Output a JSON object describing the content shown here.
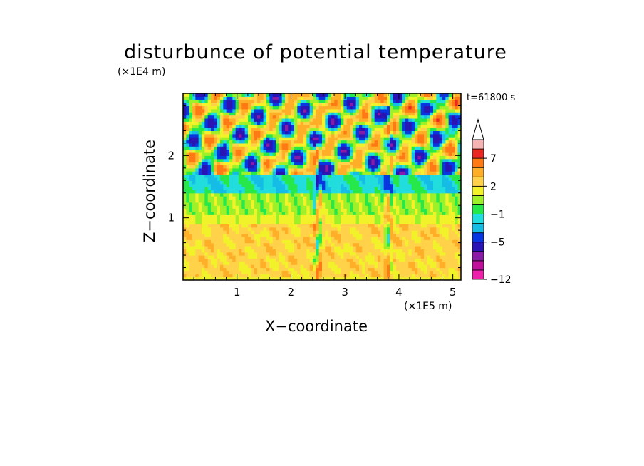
{
  "chart_data": {
    "type": "heatmap",
    "title": "disturbunce of potential temperature",
    "xlabel": "X−coordinate",
    "ylabel": "Z−coordinate",
    "x_unit": "(×1E5 m)",
    "y_unit": "(×1E4 m)",
    "timestamp": "t=61800 s",
    "xlim": [
      0,
      5.15
    ],
    "ylim": [
      0,
      3.0
    ],
    "x_ticks": [
      1,
      2,
      3,
      4,
      5
    ],
    "y_ticks": [
      1,
      2
    ],
    "colorbar": {
      "levels": [
        -12,
        -11,
        -9,
        -7,
        -5,
        -3,
        -2,
        -1,
        0,
        1,
        2,
        3,
        5,
        7,
        9,
        11
      ],
      "tick_labels": [
        "−12",
        "−5",
        "−1",
        "2",
        "7"
      ],
      "colors": [
        "#ee22aa",
        "#c0109a",
        "#8a1aa8",
        "#2a14b4",
        "#0836e0",
        "#14bce6",
        "#22dddd",
        "#26e84a",
        "#9ef028",
        "#f2f22a",
        "#ffd24a",
        "#ffae28",
        "#ff7a14",
        "#e82a22",
        "#f5b4b4"
      ],
      "extend": "max"
    },
    "vertical_layers": [
      {
        "z_range": [
          0.0,
          0.05
        ],
        "typical_value": 1.5
      },
      {
        "z_range": [
          0.05,
          0.9
        ],
        "typical_value": 2.5
      },
      {
        "z_range": [
          0.9,
          1.05
        ],
        "typical_value": 1.5
      },
      {
        "z_range": [
          1.05,
          1.4
        ],
        "typical_value": 0.5
      },
      {
        "z_range": [
          1.4,
          1.7
        ],
        "typical_value": -1.5
      },
      {
        "z_range": [
          1.7,
          3.0
        ],
        "typical_value": "oscillating -6 to 8"
      }
    ],
    "features": [
      {
        "x": 2.5,
        "z_range": [
          0,
          2.2
        ],
        "description": "narrow vertical plume of alternating values"
      },
      {
        "x": 3.8,
        "z_range": [
          0,
          2.8
        ],
        "description": "secondary vertical striations"
      }
    ]
  },
  "colors": {
    "background": "#ffffff",
    "axes": "#000000"
  }
}
